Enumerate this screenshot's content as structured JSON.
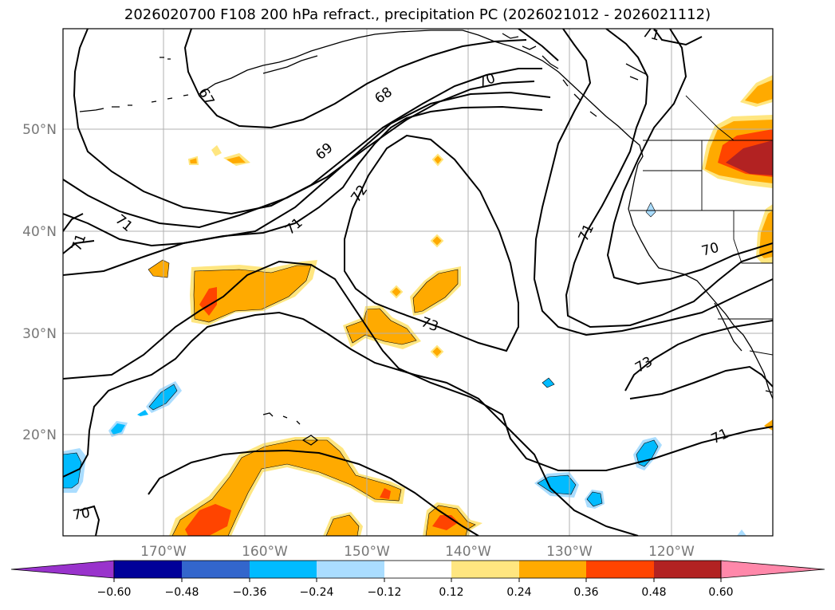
{
  "title": "2026020700 F108 200 hPa refract., precipitation PC (2026021012 - 2026021112)",
  "axes": {
    "lon_labels": [
      "170°W",
      "160°W",
      "150°W",
      "140°W",
      "130°W",
      "120°W"
    ],
    "lat_labels": [
      "50°N",
      "40°N",
      "30°N",
      "20°N"
    ]
  },
  "contour_labels": [
    "71",
    "70",
    "68",
    "67",
    "69",
    "72",
    "71",
    "73",
    "71",
    "70",
    "73",
    "71",
    "70",
    "71",
    "70"
  ],
  "colorbar": {
    "ticks": [
      "−0.60",
      "−0.48",
      "−0.36",
      "−0.24",
      "−0.12",
      "0.12",
      "0.24",
      "0.36",
      "0.48",
      "0.60"
    ],
    "colors": [
      "#9933cc",
      "#000099",
      "#3366cc",
      "#00bbff",
      "#aaddff",
      "#ffffff",
      "#ffe680",
      "#ffaa00",
      "#ff4400",
      "#b22222",
      "#ff88aa"
    ]
  },
  "colors": {
    "pos_light": "#ffe680",
    "pos_mid": "#ffaa00",
    "pos_high": "#ff4400",
    "pos_max": "#b22222",
    "neg_light": "#aaddff",
    "neg_mid": "#00bbff"
  }
}
